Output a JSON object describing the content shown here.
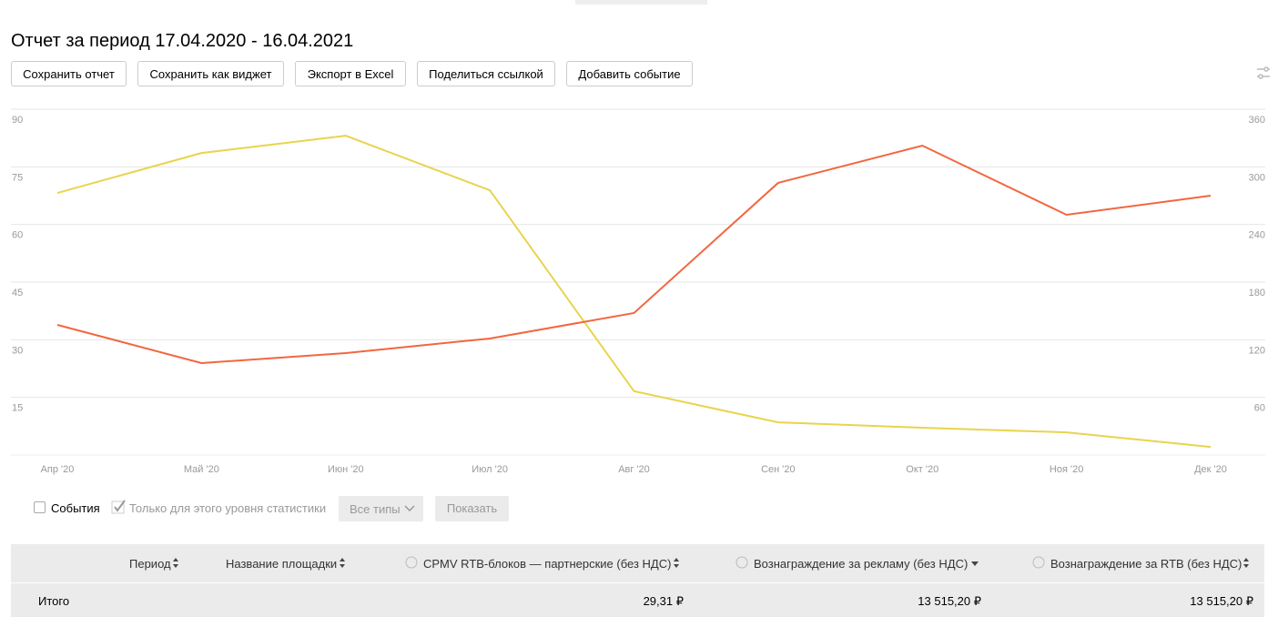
{
  "title": "Отчет за период 17.04.2020 - 16.04.2021",
  "buttons": [
    "Сохранить отчет",
    "Сохранить как виджет",
    "Экспорт в Excel",
    "Поделиться ссылкой",
    "Добавить событие"
  ],
  "chart_data": {
    "type": "line",
    "categories": [
      "Апр '20",
      "Май '20",
      "Июн '20",
      "Июл '20",
      "Авг '20",
      "Сен '20",
      "Окт '20",
      "Ноя '20",
      "Дек '20"
    ],
    "series": [
      {
        "color": "#e8d44d",
        "values": [
          68.2,
          78.6,
          83.1,
          68.9,
          16.6,
          8.5,
          7.1,
          5.9,
          2.1
        ]
      },
      {
        "color": "#f26640",
        "axis": "y2",
        "values": [
          135.5,
          95.7,
          106.1,
          121.3,
          147.8,
          283.3,
          322.1,
          250.1,
          270
        ]
      }
    ],
    "ylim": [
      0,
      90
    ],
    "yticks": [
      15,
      30,
      45,
      60,
      75,
      90
    ],
    "y2lim": [
      0,
      360
    ],
    "y2ticks": [
      60,
      120,
      180,
      240,
      300,
      360
    ],
    "grid": true
  },
  "filters": {
    "events": "События",
    "level": "Только для этого уровня статистики",
    "types": "Все типы",
    "show": "Показать"
  },
  "table": {
    "columns": [
      "Период",
      "Название площадки",
      "CPMV RTB-блоков — партнерские (без НДС)",
      "Вознаграждение за рекламу (без НДС)",
      "Вознаграждение за RTB (без НДС)"
    ],
    "total": {
      "label": "Итого",
      "values": [
        "29,31 ₽",
        "13 515,20 ₽",
        "13 515,20 ₽"
      ]
    }
  }
}
